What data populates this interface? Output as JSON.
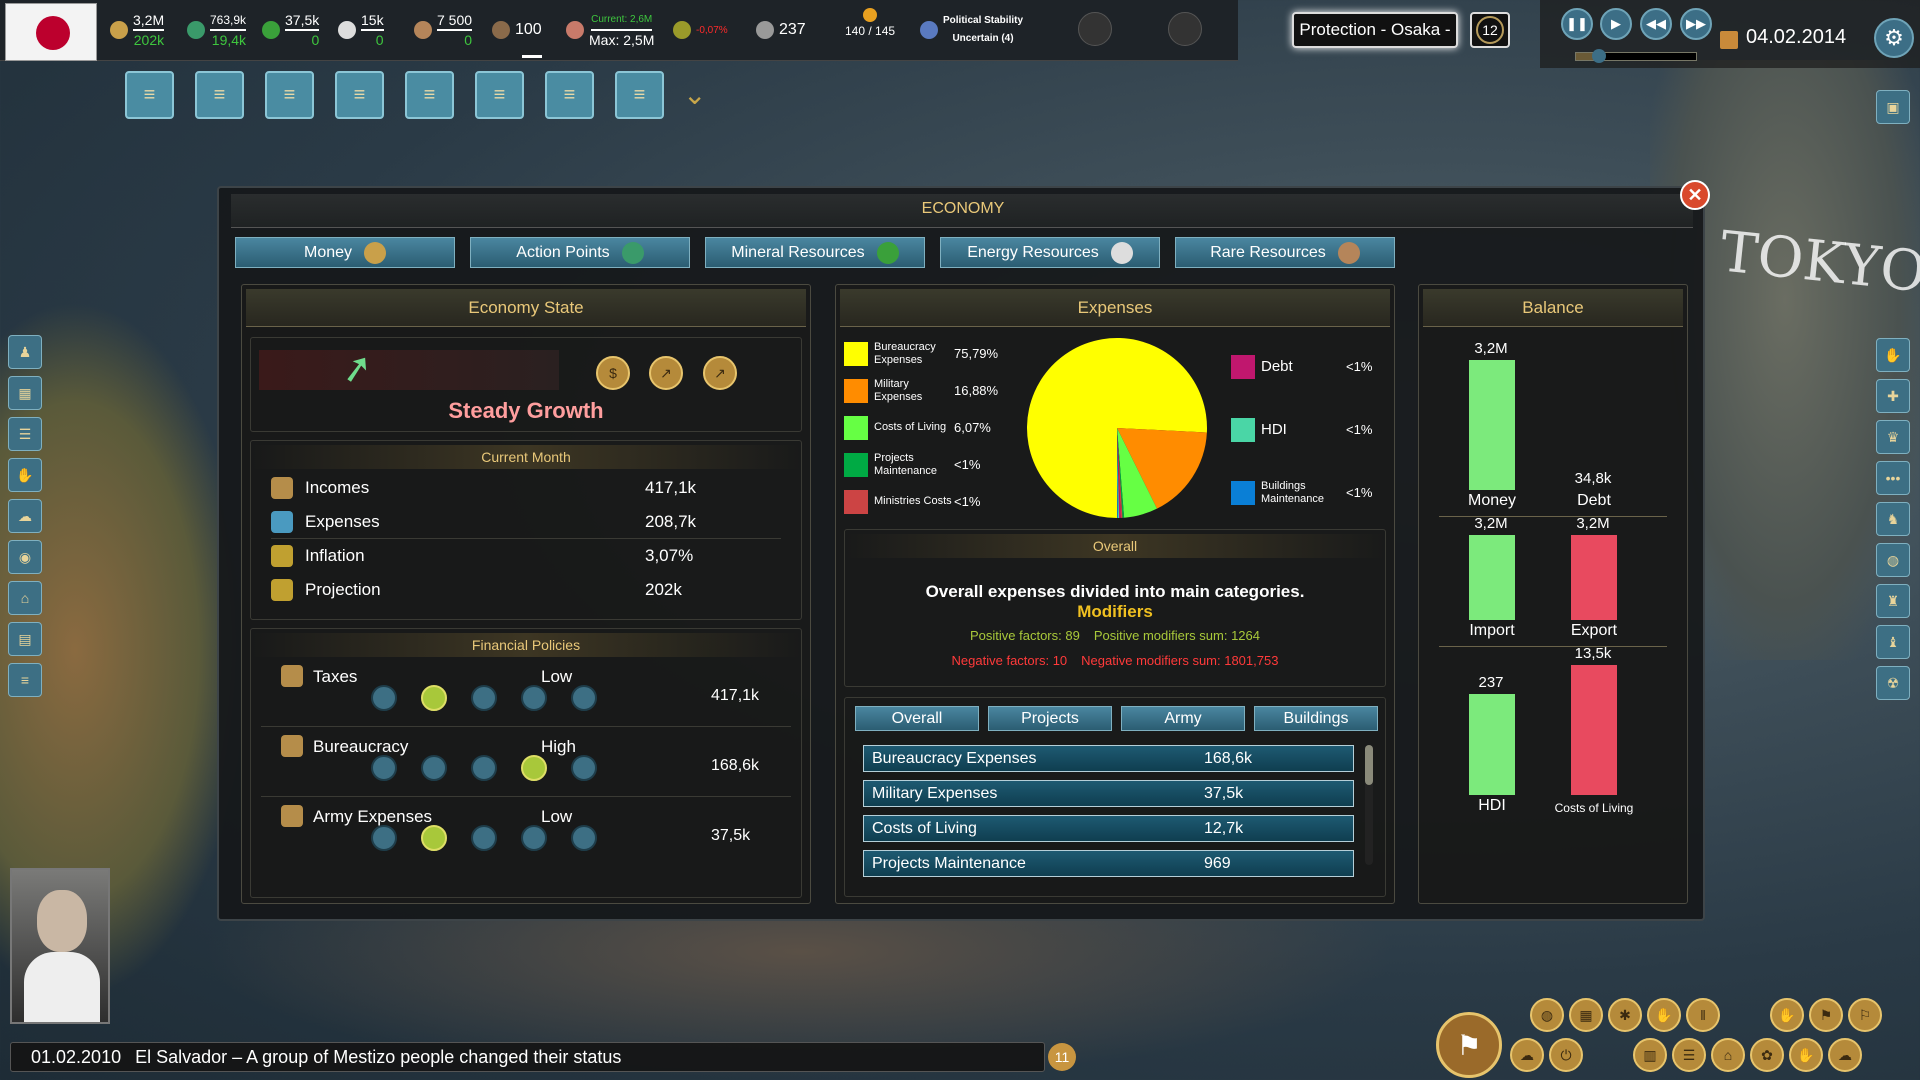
{
  "topbar": {
    "money": {
      "value": "3,2M",
      "delta": "202k"
    },
    "action_points": {
      "value": "763,9k",
      "delta": "19,4k"
    },
    "minerals": {
      "value": "37,5k",
      "delta": "0"
    },
    "energy": {
      "value": "15k",
      "delta": "0"
    },
    "rare": {
      "value": "7 500",
      "delta": "0"
    },
    "army": "100",
    "population": {
      "current": "Current: 2,6M",
      "max": "Max: 2,5M"
    },
    "growth": "-0,07%",
    "hdi": "237",
    "seats": "140 / 145",
    "stability": {
      "label": "Political Stability",
      "value": "Uncertain (4)"
    },
    "mission": "Protection - Osaka -",
    "turns": "12",
    "date": "04.02.2014",
    "speed_level": 1
  },
  "map": {
    "label": "TOKYO"
  },
  "economy": {
    "title": "ECONOMY",
    "tabs": [
      {
        "label": "Money"
      },
      {
        "label": "Action Points"
      },
      {
        "label": "Mineral Resources"
      },
      {
        "label": "Energy Resources"
      },
      {
        "label": "Rare Resources"
      }
    ],
    "state": {
      "title": "Economy State",
      "status": "Steady Growth",
      "current_month": "Current Month",
      "rows": [
        {
          "label": "Incomes",
          "value": "417,1k"
        },
        {
          "label": "Expenses",
          "value": "208,7k"
        },
        {
          "label": "Inflation",
          "value": "3,07%"
        },
        {
          "label": "Projection",
          "value": "202k"
        }
      ],
      "policies_title": "Financial Policies",
      "policies": [
        {
          "label": "Taxes",
          "level": "Low",
          "value": "417,1k",
          "selected": 1
        },
        {
          "label": "Bureaucracy",
          "level": "High",
          "value": "168,6k",
          "selected": 3
        },
        {
          "label": "Army Expenses",
          "level": "Low",
          "value": "37,5k",
          "selected": 1
        }
      ]
    },
    "expenses": {
      "title": "Expenses",
      "overall_title": "Overall",
      "description": "Overall expenses divided into main categories.",
      "modifiers_title": "Modifiers",
      "positive_factors": "Positive factors: 89",
      "positive_sum": "Positive modifiers sum: 1264",
      "negative_factors": "Negative factors: 10",
      "negative_sum": "Negative modifiers sum: 1801,753",
      "subtabs": [
        {
          "label": "Overall"
        },
        {
          "label": "Projects"
        },
        {
          "label": "Army"
        },
        {
          "label": "Buildings"
        }
      ],
      "list": [
        {
          "label": "Bureaucracy Expenses",
          "value": "168,6k"
        },
        {
          "label": "Military Expenses",
          "value": "37,5k"
        },
        {
          "label": "Costs of Living",
          "value": "12,7k"
        },
        {
          "label": "Projects Maintenance",
          "value": "969"
        }
      ]
    },
    "balance": {
      "title": "Balance",
      "groups": [
        [
          {
            "label": "Money",
            "value": "3,2M",
            "color": "#7cea7c",
            "frac": 1.0
          },
          {
            "label": "Debt",
            "value": "34,8k",
            "color": "#7cea7c",
            "frac": 0.0
          }
        ],
        [
          {
            "label": "Import",
            "value": "3,2M",
            "color": "#7cea7c",
            "frac": 1.0
          },
          {
            "label": "Export",
            "value": "3,2M",
            "color": "#e84a5f",
            "frac": 1.0
          }
        ],
        [
          {
            "label": "HDI",
            "value": "237",
            "color": "#7cea7c",
            "frac": 0.78
          },
          {
            "label": "Costs of Living",
            "value": "13,5k",
            "color": "#e84a5f",
            "frac": 1.0
          }
        ]
      ]
    }
  },
  "chart_data": {
    "type": "pie",
    "slices": [
      {
        "name": "Bureaucracy Expenses",
        "pct_label": "75,79%",
        "value": 75.79,
        "color": "#ffff00"
      },
      {
        "name": "Military Expenses",
        "pct_label": "16,88%",
        "value": 16.88,
        "color": "#ff8c00"
      },
      {
        "name": "Costs of Living",
        "pct_label": "6,07%",
        "value": 6.07,
        "color": "#66ff44"
      },
      {
        "name": "Projects Maintenance",
        "pct_label": "<1%",
        "value": 0.3,
        "color": "#00aa44"
      },
      {
        "name": "Ministries Costs",
        "pct_label": "<1%",
        "value": 0.3,
        "color": "#cc4444"
      },
      {
        "name": "Debt",
        "pct_label": "<1%",
        "value": 0.3,
        "color": "#c0176e"
      },
      {
        "name": "HDI",
        "pct_label": "<1%",
        "value": 0.2,
        "color": "#4ad6a6"
      },
      {
        "name": "Buildings Maintenance",
        "pct_label": "<1%",
        "value": 0.16,
        "color": "#0a7fd6"
      }
    ]
  },
  "news": {
    "date": "01.02.2010",
    "text": "El Salvador – A group of Mestizo people changed their status",
    "count": "11"
  }
}
